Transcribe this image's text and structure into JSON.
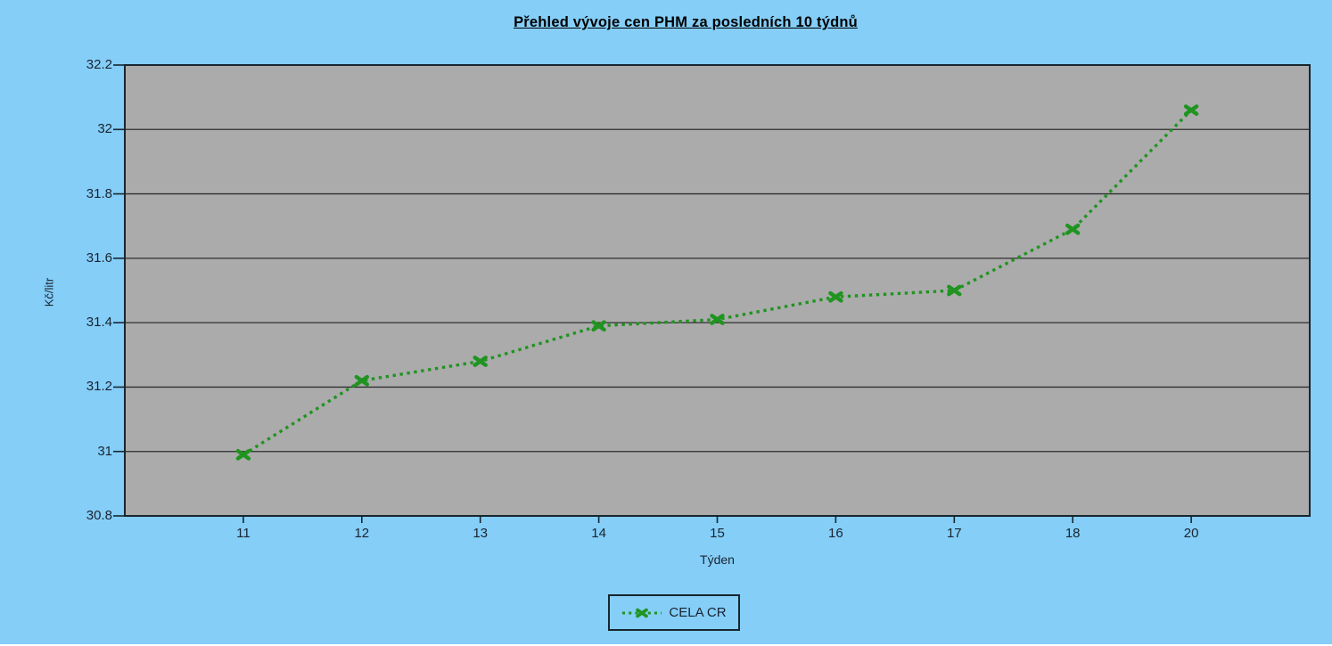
{
  "chart_data": {
    "type": "line",
    "title": "Přehled vývoje cen PHM za posledních 10 týdnů",
    "categories": [
      "11",
      "12",
      "13",
      "14",
      "15",
      "16",
      "17",
      "18",
      "20"
    ],
    "series": [
      {
        "name": "CELA CR",
        "values": [
          30.99,
          31.22,
          31.28,
          31.39,
          31.41,
          31.48,
          31.5,
          31.69,
          32.06
        ],
        "color": "#1F9420",
        "line_style": "dotted",
        "marker": "x"
      }
    ],
    "xlabel": "Týden",
    "ylabel": "Kč/litr",
    "ylim": [
      30.8,
      32.2
    ],
    "ytick_step": 0.2,
    "ytick_labels": [
      "30.8",
      "31",
      "31.2",
      "31.4",
      "31.6",
      "31.8",
      "32",
      "32.2"
    ],
    "grid": "horizontal",
    "legend": {
      "label": "CELA CR",
      "position": "bottom-center"
    }
  },
  "colors": {
    "background": "#84CEF8",
    "plot_background": "#ABABAB",
    "gridline": "#2F2F2F",
    "axis": "#17262F",
    "series_green": "#1F9420",
    "text": "#1A2430",
    "title": "#000000"
  }
}
